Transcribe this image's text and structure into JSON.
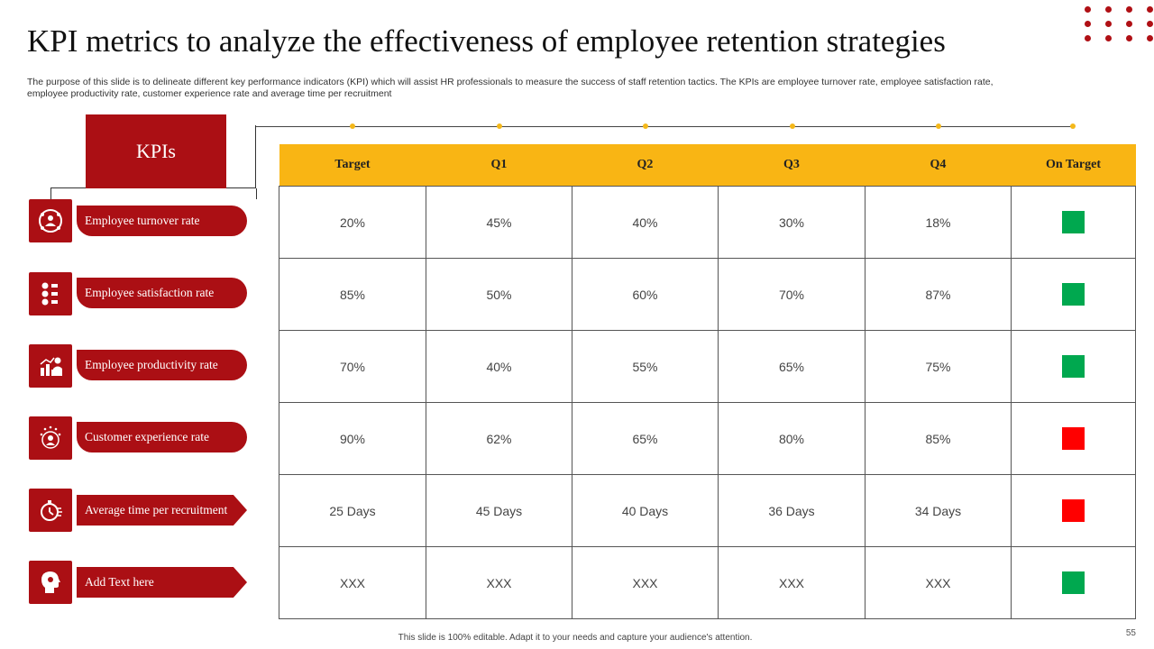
{
  "slide": {
    "title": "KPI metrics to analyze the effectiveness of employee retention strategies",
    "subtitle": "The purpose of this slide is to delineate different key performance indicators (KPI) which will assist HR professionals to measure the success of staff retention tactics. The KPIs are employee turnover rate, employee satisfaction rate, employee productivity rate, customer experience rate and average time per recruitment",
    "footer": "This slide is 100% editable. Adapt it to your needs and capture your audience's attention.",
    "page_number": "55"
  },
  "kpis": {
    "header": "KPIs",
    "items": [
      {
        "label": "Employee turnover rate",
        "icon": "people-cycle-icon"
      },
      {
        "label": "Employee satisfaction rate",
        "icon": "rating-faces-icon"
      },
      {
        "label": "Employee productivity  rate",
        "icon": "productivity-chart-icon"
      },
      {
        "label": "Customer experience rate",
        "icon": "customer-stars-icon"
      },
      {
        "label": "Average time per recruitment",
        "icon": "stopwatch-icon"
      },
      {
        "label": "Add Text here",
        "icon": "head-profile-icon"
      }
    ]
  },
  "table": {
    "columns": [
      "Target",
      "Q1",
      "Q2",
      "Q3",
      "Q4",
      "On Target"
    ],
    "rows": [
      {
        "values": [
          "20%",
          "45%",
          "40%",
          "30%",
          "18%"
        ],
        "status": "green"
      },
      {
        "values": [
          "85%",
          "50%",
          "60%",
          "70%",
          "87%"
        ],
        "status": "green"
      },
      {
        "values": [
          "70%",
          "40%",
          "55%",
          "65%",
          "75%"
        ],
        "status": "green"
      },
      {
        "values": [
          "90%",
          "62%",
          "65%",
          "80%",
          "85%"
        ],
        "status": "red"
      },
      {
        "values": [
          "25 Days",
          "45 Days",
          "40 Days",
          "36 Days",
          "34 Days"
        ],
        "status": "red"
      },
      {
        "values": [
          "XXX",
          "XXX",
          "XXX",
          "XXX",
          "XXX"
        ],
        "status": "green"
      }
    ]
  },
  "colors": {
    "brand_red": "#ab0f14",
    "header_yellow": "#f9b514",
    "status_green": "#00a84f",
    "status_red": "#ff0000"
  }
}
